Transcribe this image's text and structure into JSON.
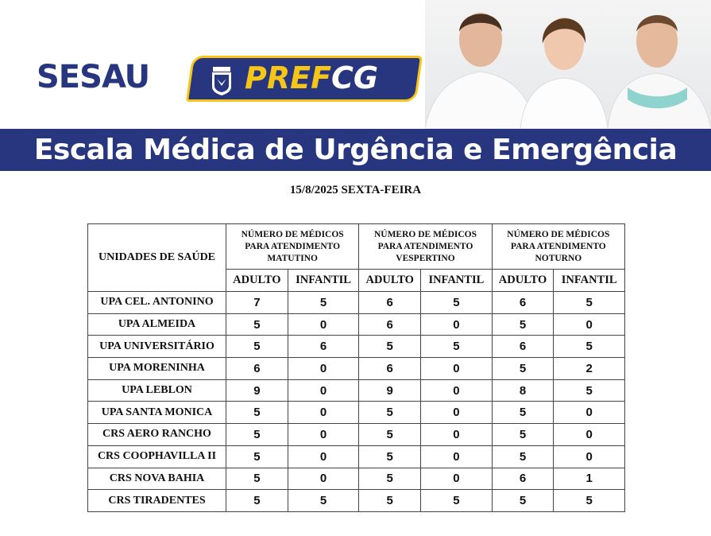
{
  "header": {
    "sesau_logo": "SESAU",
    "pref_logo_part1": "PREF",
    "pref_logo_part2": "CG",
    "title": "Escala Médica de Urgência e Emergência",
    "colors": {
      "brand_blue": "#27367f",
      "brand_yellow": "#f5c518"
    }
  },
  "date": "15/8/2025 SEXTA-FEIRA",
  "table": {
    "unit_header": "UNIDADES DE SAÚDE",
    "groups": [
      [
        "NÚMERO DE MÉDICOS",
        "PARA ATENDIMENTO",
        "MATUTINO"
      ],
      [
        "NÚMERO DE MÉDICOS",
        "PARA ATENDIMENTO",
        "VESPERTINO"
      ],
      [
        "NÚMERO DE MÉDICOS",
        "PARA ATENDIMENTO",
        "NOTURNO"
      ]
    ],
    "subheaders": [
      "ADULTO",
      "INFANTIL",
      "ADULTO",
      "INFANTIL",
      "ADULTO",
      "INFANTIL"
    ],
    "rows": [
      {
        "name": "UPA CEL. ANTONINO",
        "values": [
          "7",
          "5",
          "6",
          "5",
          "6",
          "5"
        ]
      },
      {
        "name": "UPA ALMEIDA",
        "values": [
          "5",
          "0",
          "6",
          "0",
          "5",
          "0"
        ]
      },
      {
        "name": "UPA UNIVERSITÁRIO",
        "values": [
          "5",
          "6",
          "5",
          "5",
          "6",
          "5"
        ]
      },
      {
        "name": "UPA MORENINHA",
        "values": [
          "6",
          "0",
          "6",
          "0",
          "5",
          "2"
        ]
      },
      {
        "name": "UPA LEBLON",
        "values": [
          "9",
          "0",
          "9",
          "0",
          "8",
          "5"
        ]
      },
      {
        "name": "UPA SANTA MONICA",
        "values": [
          "5",
          "0",
          "5",
          "0",
          "5",
          "0"
        ]
      },
      {
        "name": "CRS AERO RANCHO",
        "values": [
          "5",
          "0",
          "5",
          "0",
          "5",
          "0"
        ]
      },
      {
        "name": "CRS COOPHAVILLA II",
        "values": [
          "5",
          "0",
          "5",
          "0",
          "5",
          "0"
        ]
      },
      {
        "name": "CRS NOVA BAHIA",
        "values": [
          "5",
          "0",
          "5",
          "0",
          "6",
          "1"
        ]
      },
      {
        "name": "CRS TIRADENTES",
        "values": [
          "5",
          "5",
          "5",
          "5",
          "5",
          "5"
        ]
      }
    ]
  }
}
